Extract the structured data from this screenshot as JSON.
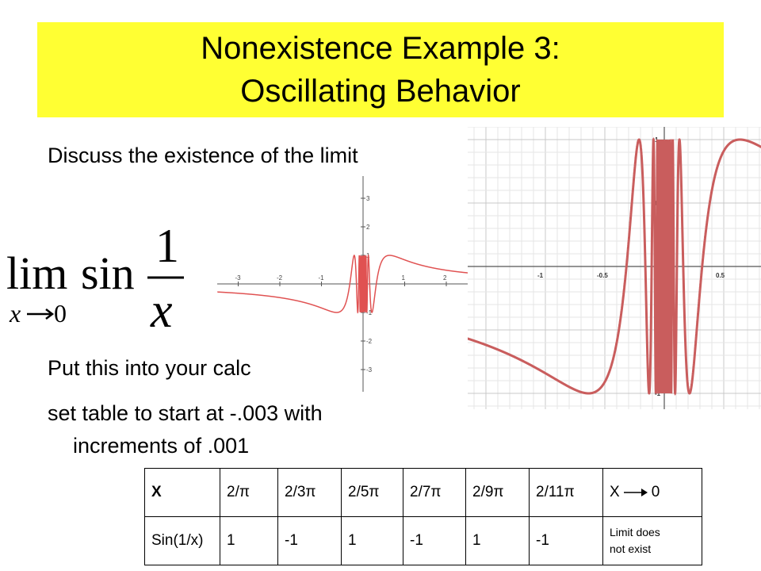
{
  "title": {
    "line1": "Nonexistence Example 3:",
    "line2": "Oscillating Behavior"
  },
  "prompt": "Discuss the existence of the limit",
  "formula": {
    "lim": "lim",
    "func": "sin",
    "numerator": "1",
    "denominator": "x",
    "subscript_left": "x",
    "subscript_right": "0"
  },
  "instructions": {
    "line1": "Put this into your calc",
    "line2": "set table to start at -.003 with",
    "line3": "increments of .001"
  },
  "graph_small": {
    "x_ticks": [
      "-3",
      "-2",
      "-1",
      "1",
      "2",
      "3"
    ],
    "y_ticks": [
      "3",
      "2",
      "1",
      "-1",
      "-2",
      "-3"
    ],
    "curve_color": "#e05252"
  },
  "graph_large": {
    "x_ticks": [
      "-1",
      "-0.5",
      "0",
      "0.5"
    ],
    "y_ticks": [
      "1",
      "0.5",
      "-0.5",
      "-1"
    ],
    "curve_color": "#c95d5d"
  },
  "table": {
    "row1": [
      "X",
      "2/π",
      "2/3π",
      "2/5π",
      "2/7π",
      "2/9π",
      "2/11π"
    ],
    "row1_last_left": "X",
    "row1_last_right": "0",
    "row2": [
      "Sin(1/x)",
      "1",
      "-1",
      "1",
      "-1",
      "1",
      "-1"
    ],
    "row2_last_line1": "Limit does",
    "row2_last_line2": "not exist"
  }
}
